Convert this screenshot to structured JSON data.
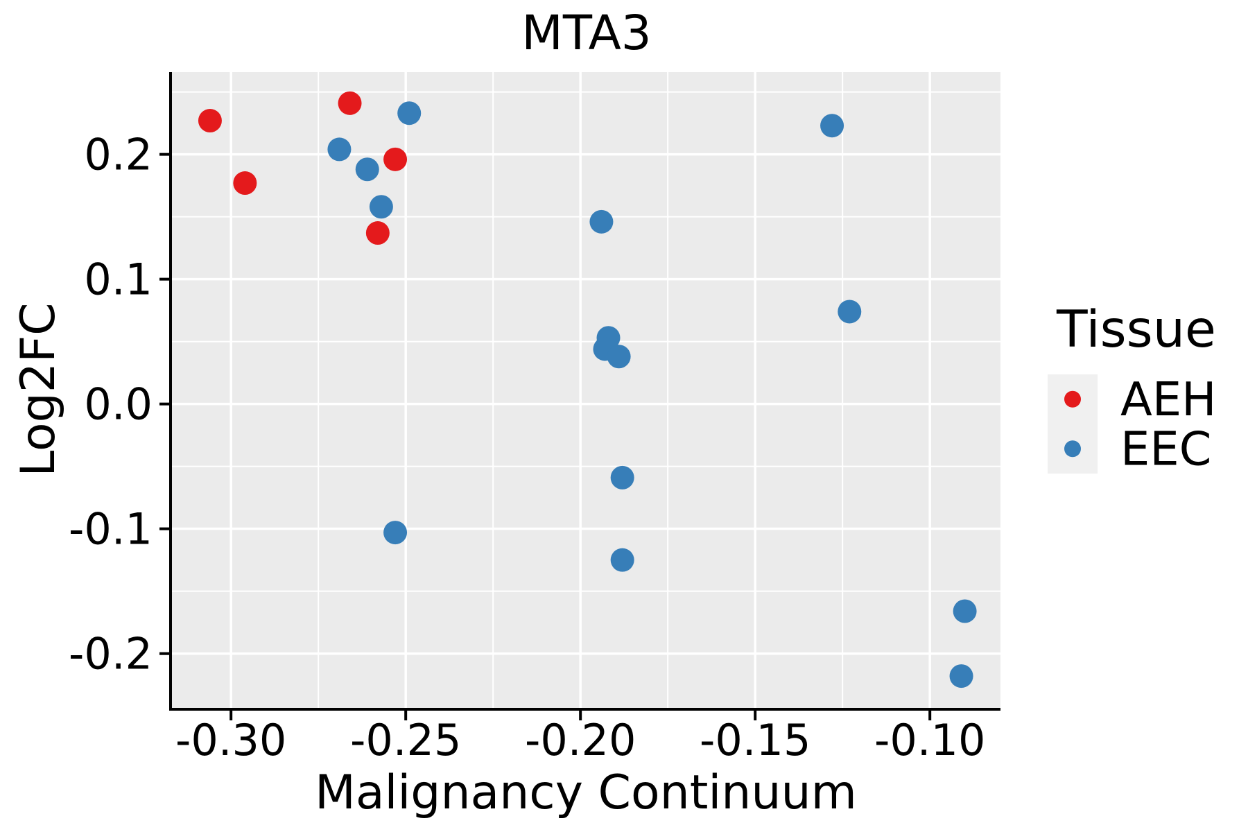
{
  "chart_data": {
    "type": "scatter",
    "title": "MTA3",
    "xlabel": "Malignancy Continuum",
    "ylabel": "Log2FC",
    "legend_title": "Tissue",
    "legend_position": "right",
    "grid": true,
    "xlim": [
      -0.3169,
      -0.0798
    ],
    "ylim": [
      -0.2435,
      0.2659
    ],
    "x_ticks": [
      -0.3,
      -0.25,
      -0.2,
      -0.15,
      -0.1
    ],
    "x_tick_labels": [
      "-0.30",
      "-0.25",
      "-0.20",
      "-0.15",
      "-0.10"
    ],
    "x_minor_ticks": [
      -0.275,
      -0.225,
      -0.175,
      -0.125
    ],
    "y_ticks": [
      0.2,
      0.1,
      0.0,
      -0.1,
      -0.2
    ],
    "y_tick_labels": [
      "0.2",
      "0.1",
      "0.0",
      "-0.1",
      "-0.2"
    ],
    "y_minor_ticks": [
      0.25,
      0.15,
      0.05,
      -0.05,
      -0.15
    ],
    "series": [
      {
        "name": "AEH",
        "color": "#e41a1c",
        "points": [
          [
            -0.306,
            0.227
          ],
          [
            -0.296,
            0.177
          ],
          [
            -0.266,
            0.241
          ],
          [
            -0.253,
            0.196
          ],
          [
            -0.258,
            0.137
          ]
        ]
      },
      {
        "name": "EEC",
        "color": "#377eb8",
        "points": [
          [
            -0.249,
            0.233
          ],
          [
            -0.269,
            0.204
          ],
          [
            -0.261,
            0.188
          ],
          [
            -0.257,
            0.158
          ],
          [
            -0.194,
            0.146
          ],
          [
            -0.192,
            0.053
          ],
          [
            -0.193,
            0.044
          ],
          [
            -0.189,
            0.038
          ],
          [
            -0.188,
            -0.059
          ],
          [
            -0.188,
            -0.125
          ],
          [
            -0.253,
            -0.103
          ],
          [
            -0.128,
            0.223
          ],
          [
            -0.123,
            0.074
          ],
          [
            -0.09,
            -0.166
          ],
          [
            -0.091,
            -0.218
          ]
        ]
      }
    ],
    "style": {
      "panel_background": "#ebebeb",
      "grid_color": "#ffffff",
      "axis_color": "#000000",
      "legend_key_fill": "#f0f0f0",
      "text_color": "#000000"
    }
  }
}
